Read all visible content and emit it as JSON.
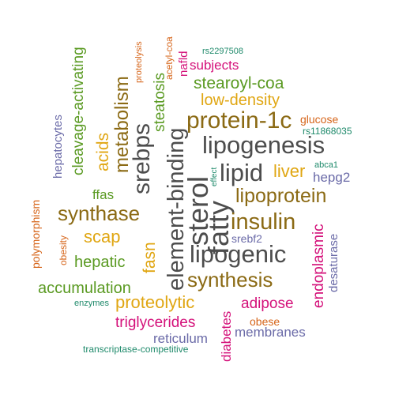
{
  "colors": {
    "background": "#ffffff",
    "gray": "#4d4d4d",
    "brown": "#8b6a14",
    "green": "#5a9a22",
    "gold": "#e0a612",
    "purple": "#6b6ba8",
    "magenta": "#d4117a",
    "orange": "#d6651a",
    "teal": "#1f8a6b"
  },
  "words": [
    {
      "text": "element-binding",
      "color": "#4d4d4d"
    },
    {
      "text": "srebps",
      "color": "#4d4d4d"
    },
    {
      "text": "sterol",
      "color": "#4d4d4d"
    },
    {
      "text": "lipogenesis",
      "color": "#4d4d4d"
    },
    {
      "text": "lipogenic",
      "color": "#4d4d4d"
    },
    {
      "text": "lipid",
      "color": "#4d4d4d"
    },
    {
      "text": "fatty",
      "color": "#4d4d4d"
    },
    {
      "text": "protein-1c",
      "color": "#8b6a14"
    },
    {
      "text": "metabolism",
      "color": "#8b6a14"
    },
    {
      "text": "insulin",
      "color": "#8b6a14"
    },
    {
      "text": "lipoprotein",
      "color": "#8b6a14"
    },
    {
      "text": "synthesis",
      "color": "#8b6a14"
    },
    {
      "text": "synthase",
      "color": "#8b6a14"
    },
    {
      "text": "fasn",
      "color": "#e0a612"
    },
    {
      "text": "acids",
      "color": "#e0a612"
    },
    {
      "text": "scap",
      "color": "#e0a612"
    },
    {
      "text": "low-density",
      "color": "#e0a612"
    },
    {
      "text": "liver",
      "color": "#e0a612"
    },
    {
      "text": "proteolytic",
      "color": "#e0a612"
    },
    {
      "text": "cleavage-activating",
      "color": "#5a9a22"
    },
    {
      "text": "steatosis",
      "color": "#5a9a22"
    },
    {
      "text": "stearoyl-coa",
      "color": "#5a9a22"
    },
    {
      "text": "hepatic",
      "color": "#5a9a22"
    },
    {
      "text": "accumulation",
      "color": "#5a9a22"
    },
    {
      "text": "ffas",
      "color": "#5a9a22"
    },
    {
      "text": "triglycerides",
      "color": "#d4117a"
    },
    {
      "text": "adipose",
      "color": "#d4117a"
    },
    {
      "text": "endoplasmic",
      "color": "#d4117a"
    },
    {
      "text": "subjects",
      "color": "#d4117a"
    },
    {
      "text": "diabetes",
      "color": "#d4117a"
    },
    {
      "text": "nafld",
      "color": "#d4117a"
    },
    {
      "text": "reticulum",
      "color": "#6b6ba8"
    },
    {
      "text": "membranes",
      "color": "#6b6ba8"
    },
    {
      "text": "hepg2",
      "color": "#6b6ba8"
    },
    {
      "text": "desaturase",
      "color": "#6b6ba8"
    },
    {
      "text": "hepatocytes",
      "color": "#6b6ba8"
    },
    {
      "text": "srebf2",
      "color": "#6b6ba8"
    },
    {
      "text": "glucose",
      "color": "#d6651a"
    },
    {
      "text": "obese",
      "color": "#d6651a"
    },
    {
      "text": "polymorphism",
      "color": "#d6651a"
    },
    {
      "text": "obesity",
      "color": "#d6651a"
    },
    {
      "text": "proteolysis",
      "color": "#d6651a"
    },
    {
      "text": "acetyl-coa",
      "color": "#d6651a"
    },
    {
      "text": "rs2297508",
      "color": "#1f8a6b"
    },
    {
      "text": "rs11868035",
      "color": "#1f8a6b"
    },
    {
      "text": "abca1",
      "color": "#1f8a6b"
    },
    {
      "text": "effect",
      "color": "#1f8a6b"
    },
    {
      "text": "enzymes",
      "color": "#1f8a6b"
    },
    {
      "text": "transcriptase-competitive",
      "color": "#1f8a6b"
    }
  ]
}
